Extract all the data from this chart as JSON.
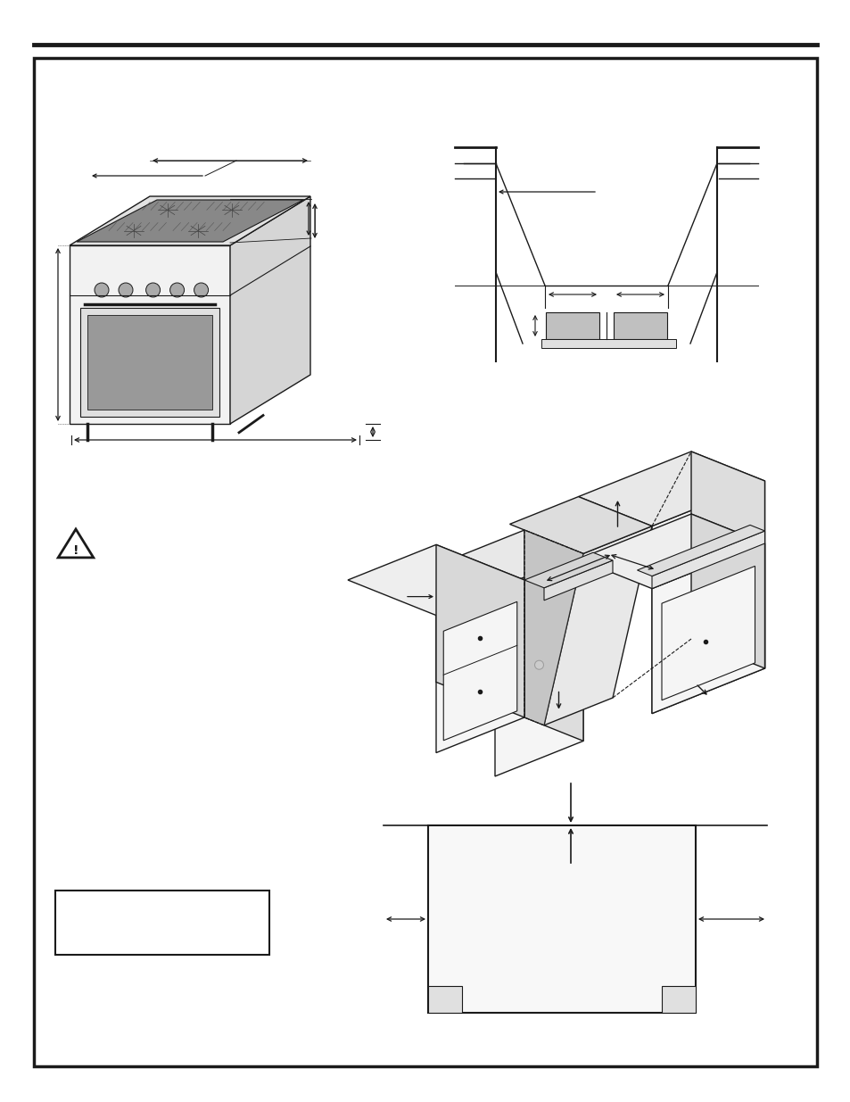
{
  "page_bg": "#ffffff",
  "line_color": "#1a1a1a",
  "gray_fill": "#c0c0c0",
  "light_gray": "#e8e8e8"
}
